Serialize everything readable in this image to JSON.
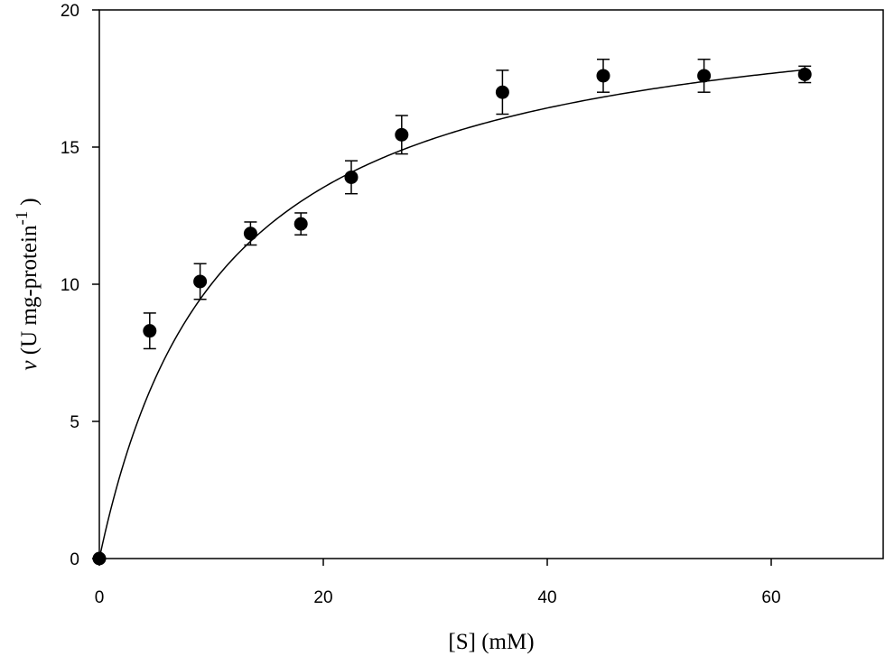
{
  "chart_data": {
    "type": "scatter",
    "title": "",
    "xlabel": "[S] (mM)",
    "ylabel": {
      "symbol": "v",
      "text": " (U mg-protein",
      "superscript": "-1",
      "close": ")"
    },
    "xlim": [
      0,
      70
    ],
    "ylim": [
      0,
      20
    ],
    "xticks": [
      0,
      20,
      40,
      60
    ],
    "yticks": [
      0,
      5,
      10,
      15,
      20
    ],
    "grid": false,
    "legend": "none",
    "series": [
      {
        "points": [
          {
            "x": 0,
            "y": 0,
            "err": 0
          },
          {
            "x": 4.5,
            "y": 8.3,
            "err": 0.65
          },
          {
            "x": 9,
            "y": 10.1,
            "err": 0.65
          },
          {
            "x": 13.5,
            "y": 11.85,
            "err": 0.42
          },
          {
            "x": 18,
            "y": 12.2,
            "err": 0.4
          },
          {
            "x": 22.5,
            "y": 13.9,
            "err": 0.6
          },
          {
            "x": 27,
            "y": 15.45,
            "err": 0.7
          },
          {
            "x": 36,
            "y": 17.0,
            "err": 0.8
          },
          {
            "x": 45,
            "y": 17.6,
            "err": 0.6
          },
          {
            "x": 54,
            "y": 17.6,
            "err": 0.6
          },
          {
            "x": 63,
            "y": 17.65,
            "err": 0.3
          }
        ]
      }
    ],
    "fit_curve": {
      "model": "michaelis-menten",
      "vmax": 20.9,
      "km": 10.9
    },
    "colors": {
      "marker": "#000000",
      "line": "#000000",
      "axis": "#000000"
    }
  }
}
